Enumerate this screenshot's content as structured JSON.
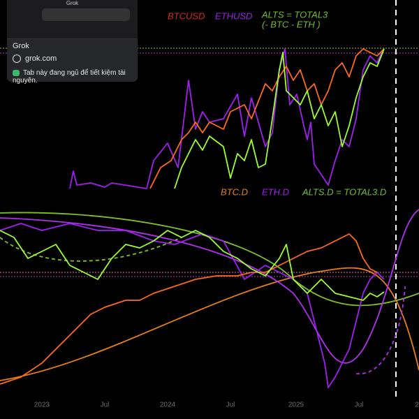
{
  "tab_tooltip": {
    "thumbnail_title": "Grok",
    "site_name": "Grok",
    "url": "grok.com",
    "memory_notice": "Tab này đang ngủ để tiết kiệm tài nguyên."
  },
  "upper_legend": {
    "btc": "BTCUSD",
    "eth": "ETHUSD",
    "alts": "ALTS = TOTAL3",
    "alts_note": "(- BTC - ETH )"
  },
  "lower_legend": {
    "btc": "BTC.D",
    "eth": "ETH.D",
    "alts": "ALTS.D = TOTAL3.D"
  },
  "x_axis": [
    "2023",
    "Jul",
    "2024",
    "Jul",
    "2025",
    "Jul",
    "2"
  ]
}
